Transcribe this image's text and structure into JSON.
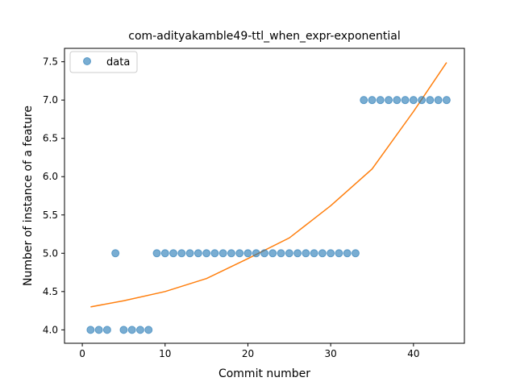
{
  "chart_data": {
    "type": "scatter",
    "title": "com-adityakamble49-ttl_when_expr-exponential",
    "xlabel": "Commit number",
    "ylabel": "Number of instance of a feature",
    "xlim": [
      -2.15,
      46.15
    ],
    "ylim": [
      3.825,
      7.675
    ],
    "x_ticks": [
      0,
      10,
      20,
      30,
      40
    ],
    "y_ticks": [
      4.0,
      4.5,
      5.0,
      5.5,
      6.0,
      6.5,
      7.0,
      7.5
    ],
    "x_tick_labels": [
      "0",
      "10",
      "20",
      "30",
      "40"
    ],
    "y_tick_labels": [
      "4.0",
      "4.5",
      "5.0",
      "5.5",
      "6.0",
      "6.5",
      "7.0",
      "7.5"
    ],
    "legend": {
      "placement": "top-left",
      "entries": [
        "data"
      ]
    },
    "grid": false,
    "series": [
      {
        "name": "data",
        "kind": "scatter",
        "color": "#1f77b4",
        "x": [
          1,
          2,
          3,
          4,
          5,
          6,
          7,
          8,
          9,
          10,
          11,
          12,
          13,
          14,
          15,
          16,
          17,
          18,
          19,
          20,
          21,
          22,
          23,
          24,
          25,
          26,
          27,
          28,
          29,
          30,
          31,
          32,
          33,
          34,
          35,
          36,
          37,
          38,
          39,
          40,
          41,
          42,
          43,
          44
        ],
        "y": [
          4,
          4,
          4,
          5,
          4,
          4,
          4,
          4,
          5,
          5,
          5,
          5,
          5,
          5,
          5,
          5,
          5,
          5,
          5,
          5,
          5,
          5,
          5,
          5,
          5,
          5,
          5,
          5,
          5,
          5,
          5,
          5,
          5,
          7,
          7,
          7,
          7,
          7,
          7,
          7,
          7,
          7,
          7,
          7
        ]
      },
      {
        "kind": "line",
        "color": "#ff7f0e",
        "x": [
          1,
          5,
          10,
          15,
          20,
          25,
          30,
          35,
          40,
          44
        ],
        "y": [
          4.3,
          4.38,
          4.5,
          4.67,
          4.93,
          5.2,
          5.62,
          6.1,
          6.85,
          7.49
        ]
      }
    ]
  }
}
